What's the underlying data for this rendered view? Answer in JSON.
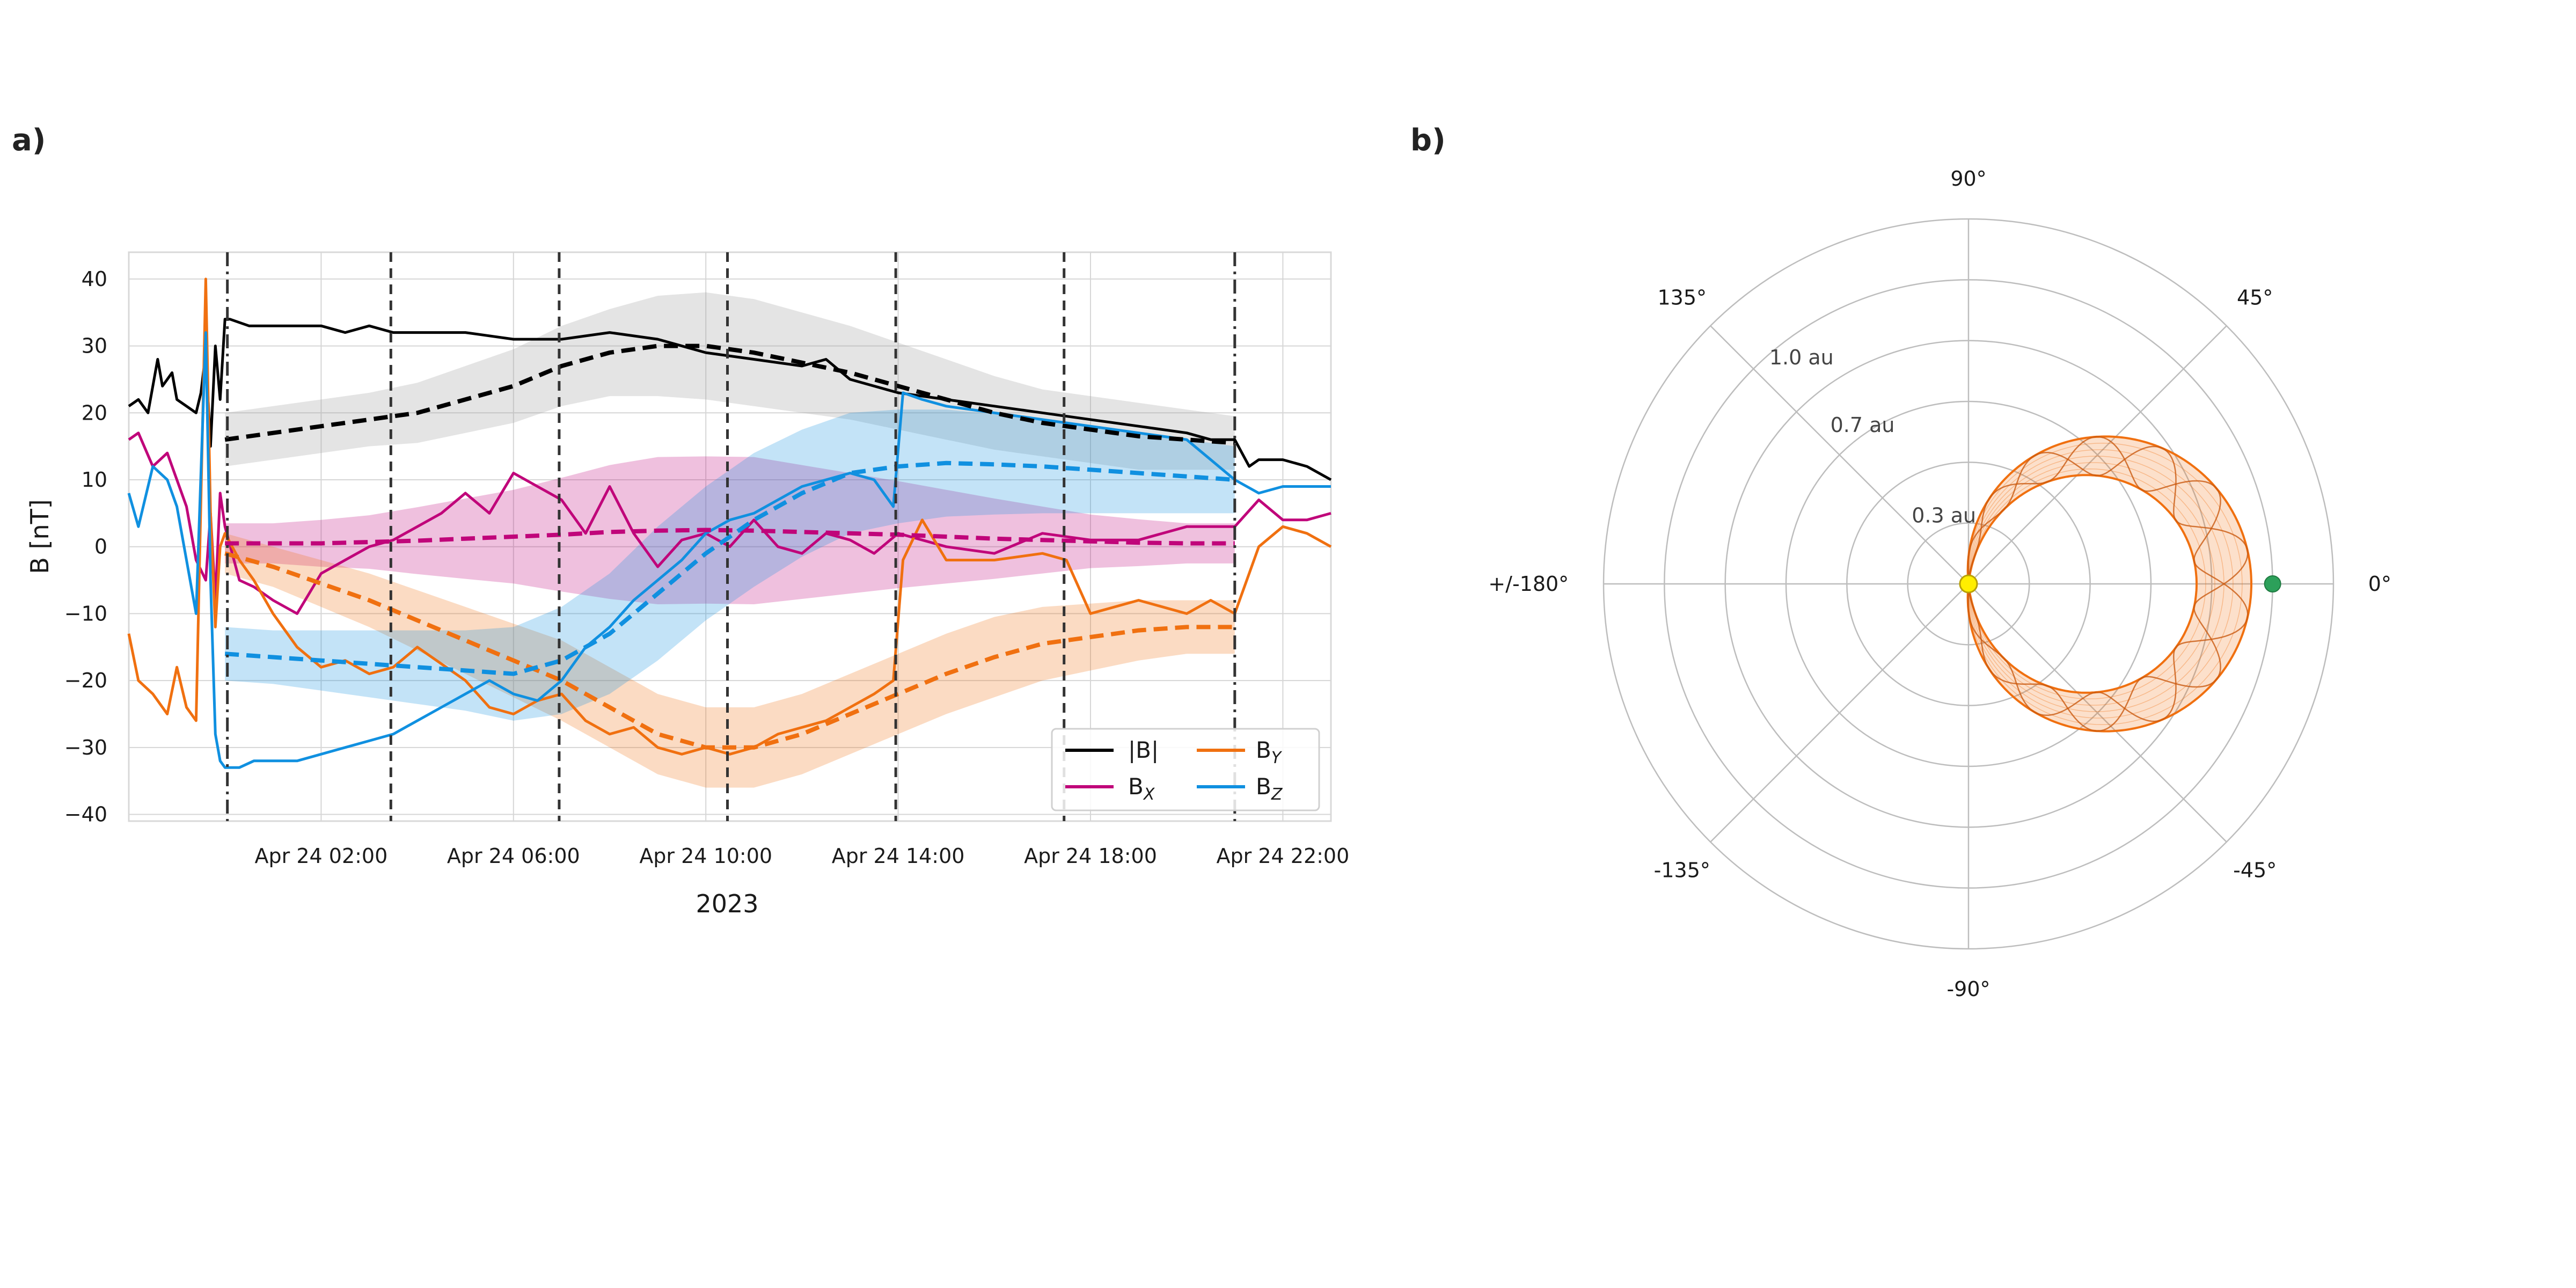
{
  "colors": {
    "B": "#000000",
    "BX": "#c0057a",
    "BY": "#f07010",
    "BZ": "#1090e0",
    "sun": "#ffee00",
    "earth": "#2ca05a",
    "grid": "#d6d6d6"
  },
  "chart_data": [
    {
      "panel_label": "a)",
      "type": "line",
      "title": "",
      "xlabel": "2023",
      "ylabel": "B [nT]",
      "xlim_hours": [
        -2,
        23
      ],
      "ylim": [
        -41,
        44
      ],
      "yticks": [
        40,
        30,
        20,
        10,
        0,
        -10,
        -20,
        -30,
        -40
      ],
      "xticks": [
        {
          "hour": 2,
          "label": "Apr 24 02:00"
        },
        {
          "hour": 6,
          "label": "Apr 24 06:00"
        },
        {
          "hour": 10,
          "label": "Apr 24 10:00"
        },
        {
          "hour": 14,
          "label": "Apr 24 14:00"
        },
        {
          "hour": 18,
          "label": "Apr 24 18:00"
        },
        {
          "hour": 22,
          "label": "Apr 24 22:00"
        }
      ],
      "boundaries": [
        {
          "hour": 0.05,
          "style": "dashdot"
        },
        {
          "hour": 3.45,
          "style": "dashed"
        },
        {
          "hour": 6.95,
          "style": "dashed"
        },
        {
          "hour": 10.45,
          "style": "dashed"
        },
        {
          "hour": 13.95,
          "style": "dashed"
        },
        {
          "hour": 17.45,
          "style": "dashed"
        },
        {
          "hour": 21.0,
          "style": "dashdot"
        }
      ],
      "legend": {
        "position": "lower-right",
        "entries": [
          {
            "key": "B",
            "label": "|B|",
            "sub": ""
          },
          {
            "key": "BY",
            "label": "B",
            "sub": "Y"
          },
          {
            "key": "BX",
            "label": "B",
            "sub": "X"
          },
          {
            "key": "BZ",
            "label": "B",
            "sub": "Z"
          }
        ]
      },
      "series_obs": [
        {
          "key": "B",
          "x": [
            -2.0,
            -1.8,
            -1.6,
            -1.4,
            -1.3,
            -1.1,
            -1.0,
            -0.8,
            -0.6,
            -0.5,
            -0.4,
            -0.3,
            -0.2,
            -0.1,
            0.0,
            0.1,
            0.5,
            1.0,
            1.5,
            2.0,
            2.5,
            3.0,
            3.5,
            4.0,
            5.0,
            6.0,
            7.0,
            8.0,
            9.0,
            10.0,
            11.0,
            12.0,
            12.5,
            13.0,
            14.0,
            15.0,
            16.0,
            17.0,
            18.0,
            19.0,
            20.0,
            20.5,
            21.0,
            21.3,
            21.5,
            22.0,
            22.5,
            23.0
          ],
          "y": [
            21,
            22,
            20,
            28,
            24,
            26,
            22,
            21,
            20,
            23,
            29,
            15,
            30,
            22,
            34,
            34,
            33,
            33,
            33,
            33,
            32,
            33,
            32,
            32,
            32,
            31,
            31,
            32,
            31,
            29,
            28,
            27,
            28,
            25,
            23,
            22,
            21,
            20,
            19,
            18,
            17,
            16,
            16,
            12,
            13,
            13,
            12,
            10
          ]
        },
        {
          "key": "BX",
          "x": [
            -2.0,
            -1.8,
            -1.5,
            -1.2,
            -1.0,
            -0.8,
            -0.6,
            -0.4,
            -0.3,
            -0.2,
            -0.1,
            0.0,
            0.3,
            0.6,
            1.0,
            1.5,
            2.0,
            2.5,
            3.0,
            3.5,
            4.0,
            4.5,
            5.0,
            5.5,
            6.0,
            6.5,
            7.0,
            7.5,
            8.0,
            8.5,
            9.0,
            9.5,
            10.0,
            10.5,
            11.0,
            11.5,
            12.0,
            12.5,
            13.0,
            13.5,
            14.0,
            15.0,
            16.0,
            17.0,
            18.0,
            19.0,
            20.0,
            21.0,
            21.5,
            22.0,
            22.5,
            23.0
          ],
          "y": [
            16,
            17,
            12,
            14,
            10,
            6,
            -2,
            -5,
            5,
            -8,
            8,
            3,
            -5,
            -6,
            -8,
            -10,
            -4,
            -2,
            0,
            1,
            3,
            5,
            8,
            5,
            11,
            9,
            7,
            2,
            9,
            2,
            -3,
            1,
            2,
            0,
            4,
            0,
            -1,
            2,
            1,
            -1,
            2,
            0,
            -1,
            2,
            1,
            1,
            3,
            3,
            7,
            4,
            4,
            5
          ]
        },
        {
          "key": "BY",
          "x": [
            -2.0,
            -1.8,
            -1.5,
            -1.2,
            -1.0,
            -0.8,
            -0.6,
            -0.4,
            -0.3,
            -0.2,
            -0.1,
            0.0,
            0.3,
            0.6,
            1.0,
            1.5,
            2.0,
            2.5,
            3.0,
            3.5,
            4.0,
            5.0,
            5.5,
            6.0,
            6.5,
            7.0,
            7.5,
            8.0,
            8.5,
            9.0,
            9.5,
            10.0,
            10.5,
            11.0,
            11.5,
            12.0,
            12.5,
            13.0,
            13.5,
            13.9,
            14.1,
            14.5,
            15.0,
            16.0,
            17.0,
            17.5,
            18.0,
            19.0,
            20.0,
            20.5,
            21.0,
            21.5,
            22.0,
            22.5,
            23.0
          ],
          "y": [
            -13,
            -20,
            -22,
            -25,
            -18,
            -24,
            -26,
            40,
            5,
            -12,
            0,
            2,
            -2,
            -5,
            -10,
            -15,
            -18,
            -17,
            -19,
            -18,
            -15,
            -20,
            -24,
            -25,
            -23,
            -22,
            -26,
            -28,
            -27,
            -30,
            -31,
            -30,
            -31,
            -30,
            -28,
            -27,
            -26,
            -24,
            -22,
            -20,
            -2,
            4,
            -2,
            -2,
            -1,
            -2,
            -10,
            -8,
            -10,
            -8,
            -10,
            0,
            3,
            2,
            0
          ]
        },
        {
          "key": "BZ",
          "x": [
            -2.0,
            -1.8,
            -1.5,
            -1.2,
            -1.0,
            -0.8,
            -0.6,
            -0.4,
            -0.3,
            -0.2,
            -0.1,
            0.0,
            0.3,
            0.6,
            1.0,
            1.5,
            2.0,
            2.5,
            3.0,
            3.5,
            4.0,
            4.5,
            5.0,
            5.5,
            6.0,
            6.5,
            7.0,
            7.5,
            8.0,
            8.5,
            9.0,
            9.5,
            10.0,
            10.5,
            11.0,
            11.5,
            12.0,
            12.5,
            13.0,
            13.5,
            13.9,
            14.1,
            14.5,
            15.0,
            16.0,
            17.0,
            18.0,
            19.0,
            20.0,
            20.5,
            21.0,
            21.5,
            22.0,
            22.5,
            23.0
          ],
          "y": [
            8,
            3,
            12,
            10,
            6,
            -2,
            -10,
            32,
            -5,
            -28,
            -32,
            -33,
            -33,
            -32,
            -32,
            -32,
            -31,
            -30,
            -29,
            -28,
            -26,
            -24,
            -22,
            -20,
            -22,
            -23,
            -20,
            -15,
            -12,
            -8,
            -5,
            -2,
            2,
            4,
            5,
            7,
            9,
            10,
            11,
            10,
            6,
            23,
            22,
            21,
            20,
            19,
            18,
            17,
            16,
            13,
            10,
            8,
            9,
            9,
            9
          ]
        }
      ],
      "series_model": [
        {
          "key": "B",
          "x": [
            0,
            1,
            2,
            3,
            4,
            5,
            6,
            7,
            8,
            9,
            10,
            11,
            12,
            13,
            14,
            15,
            16,
            17,
            18,
            19,
            20,
            21
          ],
          "y": [
            16,
            17,
            18,
            19,
            20,
            22,
            24,
            27,
            29,
            30,
            30,
            29,
            27.5,
            26,
            24,
            22,
            20,
            18.5,
            17.5,
            16.5,
            16,
            15.5
          ],
          "band": [
            4,
            4,
            4,
            4,
            4.5,
            5,
            5.5,
            6,
            6.5,
            7.5,
            8,
            8,
            7.5,
            7,
            6.5,
            6,
            5.5,
            5,
            5,
            5,
            4.5,
            4
          ]
        },
        {
          "key": "BX",
          "x": [
            0,
            1,
            2,
            3,
            4,
            5,
            6,
            7,
            8,
            9,
            10,
            11,
            12,
            13,
            14,
            15,
            16,
            17,
            18,
            19,
            20,
            21
          ],
          "y": [
            0.5,
            0.5,
            0.5,
            0.7,
            0.9,
            1.2,
            1.5,
            1.8,
            2.2,
            2.4,
            2.5,
            2.4,
            2.2,
            2.0,
            1.8,
            1.5,
            1.2,
            1.0,
            0.8,
            0.6,
            0.5,
            0.5
          ],
          "band": [
            3,
            3,
            3.5,
            4,
            5,
            6,
            7,
            8.5,
            10,
            11,
            11,
            11,
            10,
            9,
            8,
            7,
            6,
            5,
            4,
            3.5,
            3,
            3
          ]
        },
        {
          "key": "BY",
          "x": [
            0,
            1,
            2,
            3,
            4,
            5,
            6,
            7,
            8,
            9,
            10,
            11,
            12,
            13,
            14,
            15,
            16,
            17,
            18,
            19,
            20,
            21
          ],
          "y": [
            -1,
            -3,
            -5.5,
            -8,
            -11,
            -14,
            -17,
            -20,
            -24,
            -28,
            -30,
            -30,
            -28,
            -25,
            -22,
            -19,
            -16.5,
            -14.5,
            -13.5,
            -12.5,
            -12,
            -12
          ],
          "band": [
            3,
            3,
            3.5,
            4,
            4.5,
            5,
            5.5,
            6,
            6,
            6,
            6,
            6,
            6,
            6,
            6,
            6,
            6,
            5.5,
            5,
            4.5,
            4,
            4
          ]
        },
        {
          "key": "BZ",
          "x": [
            0,
            1,
            2,
            3,
            4,
            5,
            6,
            7,
            8,
            9,
            10,
            11,
            12,
            13,
            14,
            15,
            16,
            17,
            18,
            19,
            20,
            21
          ],
          "y": [
            -16,
            -16.5,
            -17,
            -17.5,
            -18,
            -18.5,
            -19,
            -17,
            -13,
            -7,
            -1,
            4,
            8,
            11,
            12,
            12.5,
            12.3,
            12,
            11.5,
            11,
            10.5,
            10
          ],
          "band": [
            4,
            4,
            4.5,
            5,
            5.5,
            6,
            7,
            8,
            9,
            10,
            10,
            10,
            9.5,
            9,
            8.5,
            8,
            7.5,
            7,
            6.5,
            6,
            5.5,
            5
          ]
        }
      ]
    },
    {
      "panel_label": "b)",
      "type": "polar",
      "angle_labels": [
        {
          "deg": 90,
          "label": "90°"
        },
        {
          "deg": 45,
          "label": "45°"
        },
        {
          "deg": 0,
          "label": "0°"
        },
        {
          "deg": -45,
          "label": "-45°"
        },
        {
          "deg": -90,
          "label": "-90°"
        },
        {
          "deg": -135,
          "label": "-135°"
        },
        {
          "deg": 180,
          "label": "+/-180°"
        },
        {
          "deg": 135,
          "label": "135°"
        }
      ],
      "rmax_au": 1.2,
      "rings_au": [
        0.2,
        0.4,
        0.6,
        0.8,
        1.0,
        1.2
      ],
      "ring_labels": [
        {
          "r": 0.3,
          "label": "0.3 au"
        },
        {
          "r": 0.7,
          "label": "0.7 au"
        },
        {
          "r": 1.0,
          "label": "1.0 au"
        }
      ],
      "sun": {
        "r": 0,
        "theta_deg": 0
      },
      "earth": {
        "r": 1.0,
        "theta_deg": 0
      },
      "flux_rope": {
        "center_r": 0.42,
        "radius": 0.42,
        "tube_halfwidth": 0.09,
        "wraps": 14
      }
    }
  ]
}
